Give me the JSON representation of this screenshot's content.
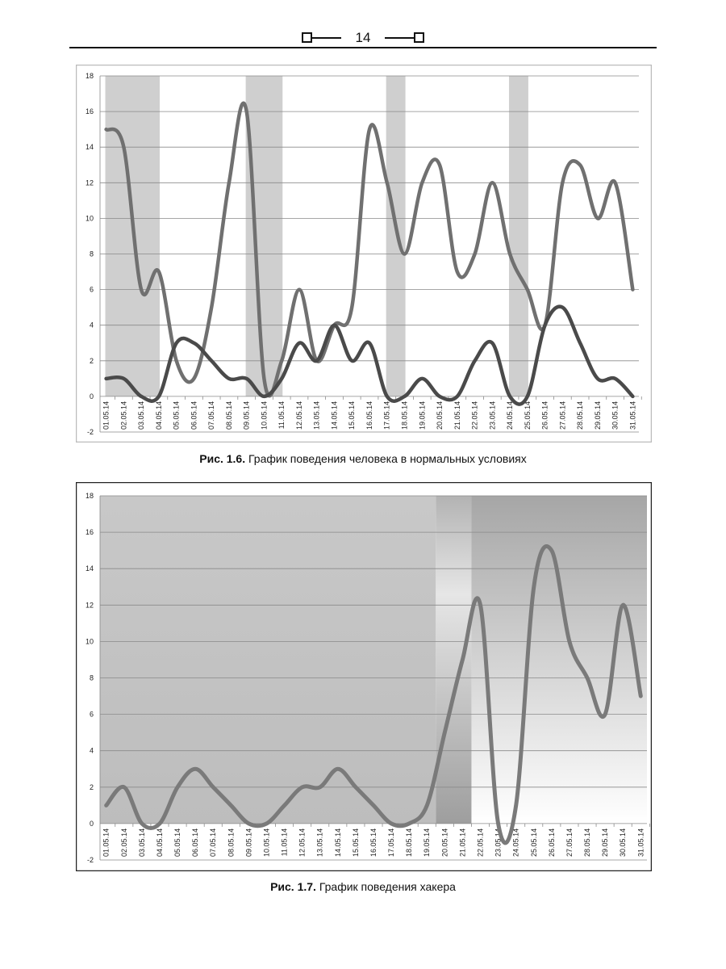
{
  "header": {
    "page_number": "14"
  },
  "figures": [
    {
      "caption_prefix": "Рис. 1.6.",
      "caption_text": "График поведения человека в нормальных условиях"
    },
    {
      "caption_prefix": "Рис. 1.7.",
      "caption_text": "График поведения хакера"
    }
  ],
  "chart_data": [
    {
      "type": "line",
      "title": "",
      "xlabel": "",
      "ylabel": "",
      "ylim": [
        -2,
        18
      ],
      "yticks": [
        -2,
        0,
        2,
        4,
        6,
        8,
        10,
        12,
        14,
        16,
        18
      ],
      "grid": true,
      "legend": "none",
      "categories": [
        "01.05.14",
        "02.05.14",
        "03.05.14",
        "04.05.14",
        "05.05.14",
        "06.05.14",
        "07.05.14",
        "08.05.14",
        "09.05.14",
        "10.05.14",
        "11.05.14",
        "12.05.14",
        "13.05.14",
        "14.05.14",
        "15.05.14",
        "16.05.14",
        "17.05.14",
        "18.05.14",
        "19.05.14",
        "20.05.14",
        "21.05.14",
        "22.05.14",
        "23.05.14",
        "24.05.14",
        "25.05.14",
        "26.05.14",
        "27.05.14",
        "28.05.14",
        "29.05.14",
        "30.05.14",
        "31.05.14"
      ],
      "shaded_ranges": [
        [
          "01.05.14",
          "04.05.14"
        ],
        [
          "09.05.14",
          "11.05.14"
        ],
        [
          "17.05.14",
          "18.05.14"
        ],
        [
          "24.05.14",
          "25.05.14"
        ]
      ],
      "series": [
        {
          "values": [
            15,
            14,
            6,
            7,
            2,
            1,
            5,
            12,
            16,
            1,
            2,
            6,
            2,
            4,
            5,
            15,
            12,
            8,
            12,
            13,
            7,
            8,
            12,
            8,
            6,
            4,
            12,
            13,
            10,
            12,
            6
          ],
          "color": "#707070"
        },
        {
          "values": [
            1,
            1,
            0,
            0,
            3,
            3,
            2,
            1,
            1,
            0,
            1,
            3,
            2,
            4,
            2,
            3,
            0,
            0,
            1,
            0,
            0,
            2,
            3,
            0,
            0,
            4,
            5,
            3,
            1,
            1,
            0
          ],
          "color": "#4a4a4a"
        }
      ]
    },
    {
      "type": "line",
      "title": "",
      "xlabel": "",
      "ylabel": "",
      "ylim": [
        -2,
        18
      ],
      "yticks": [
        -2,
        0,
        2,
        4,
        6,
        8,
        10,
        12,
        14,
        16,
        18
      ],
      "grid": true,
      "legend": "none",
      "categories": [
        "01.05.14",
        "02.05.14",
        "03.05.14",
        "04.05.14",
        "05.05.14",
        "06.05.14",
        "07.05.14",
        "08.05.14",
        "09.05.14",
        "10.05.14",
        "11.05.14",
        "12.05.14",
        "13.05.14",
        "14.05.14",
        "15.05.14",
        "16.05.14",
        "17.05.14",
        "18.05.14",
        "19.05.14",
        "20.05.14",
        "21.05.14",
        "22.05.14",
        "23.05.14",
        "24.05.14",
        "25.05.14",
        "26.05.14",
        "27.05.14",
        "28.05.14",
        "29.05.14",
        "30.05.14",
        "31.05.14"
      ],
      "shaded_ranges": [
        [
          "01.05.14",
          "19.05.14"
        ],
        [
          "20.05.14",
          "21.05.14"
        ],
        [
          "22.05.14",
          "31.05.14"
        ]
      ],
      "series": [
        {
          "values": [
            1,
            2,
            0,
            0,
            2,
            3,
            2,
            1,
            0,
            0,
            1,
            2,
            2,
            3,
            2,
            1,
            0,
            0,
            1,
            5,
            9,
            12,
            0,
            1,
            13,
            15,
            10,
            8,
            6,
            12,
            7
          ],
          "color": "#7a7a7a"
        }
      ]
    }
  ]
}
